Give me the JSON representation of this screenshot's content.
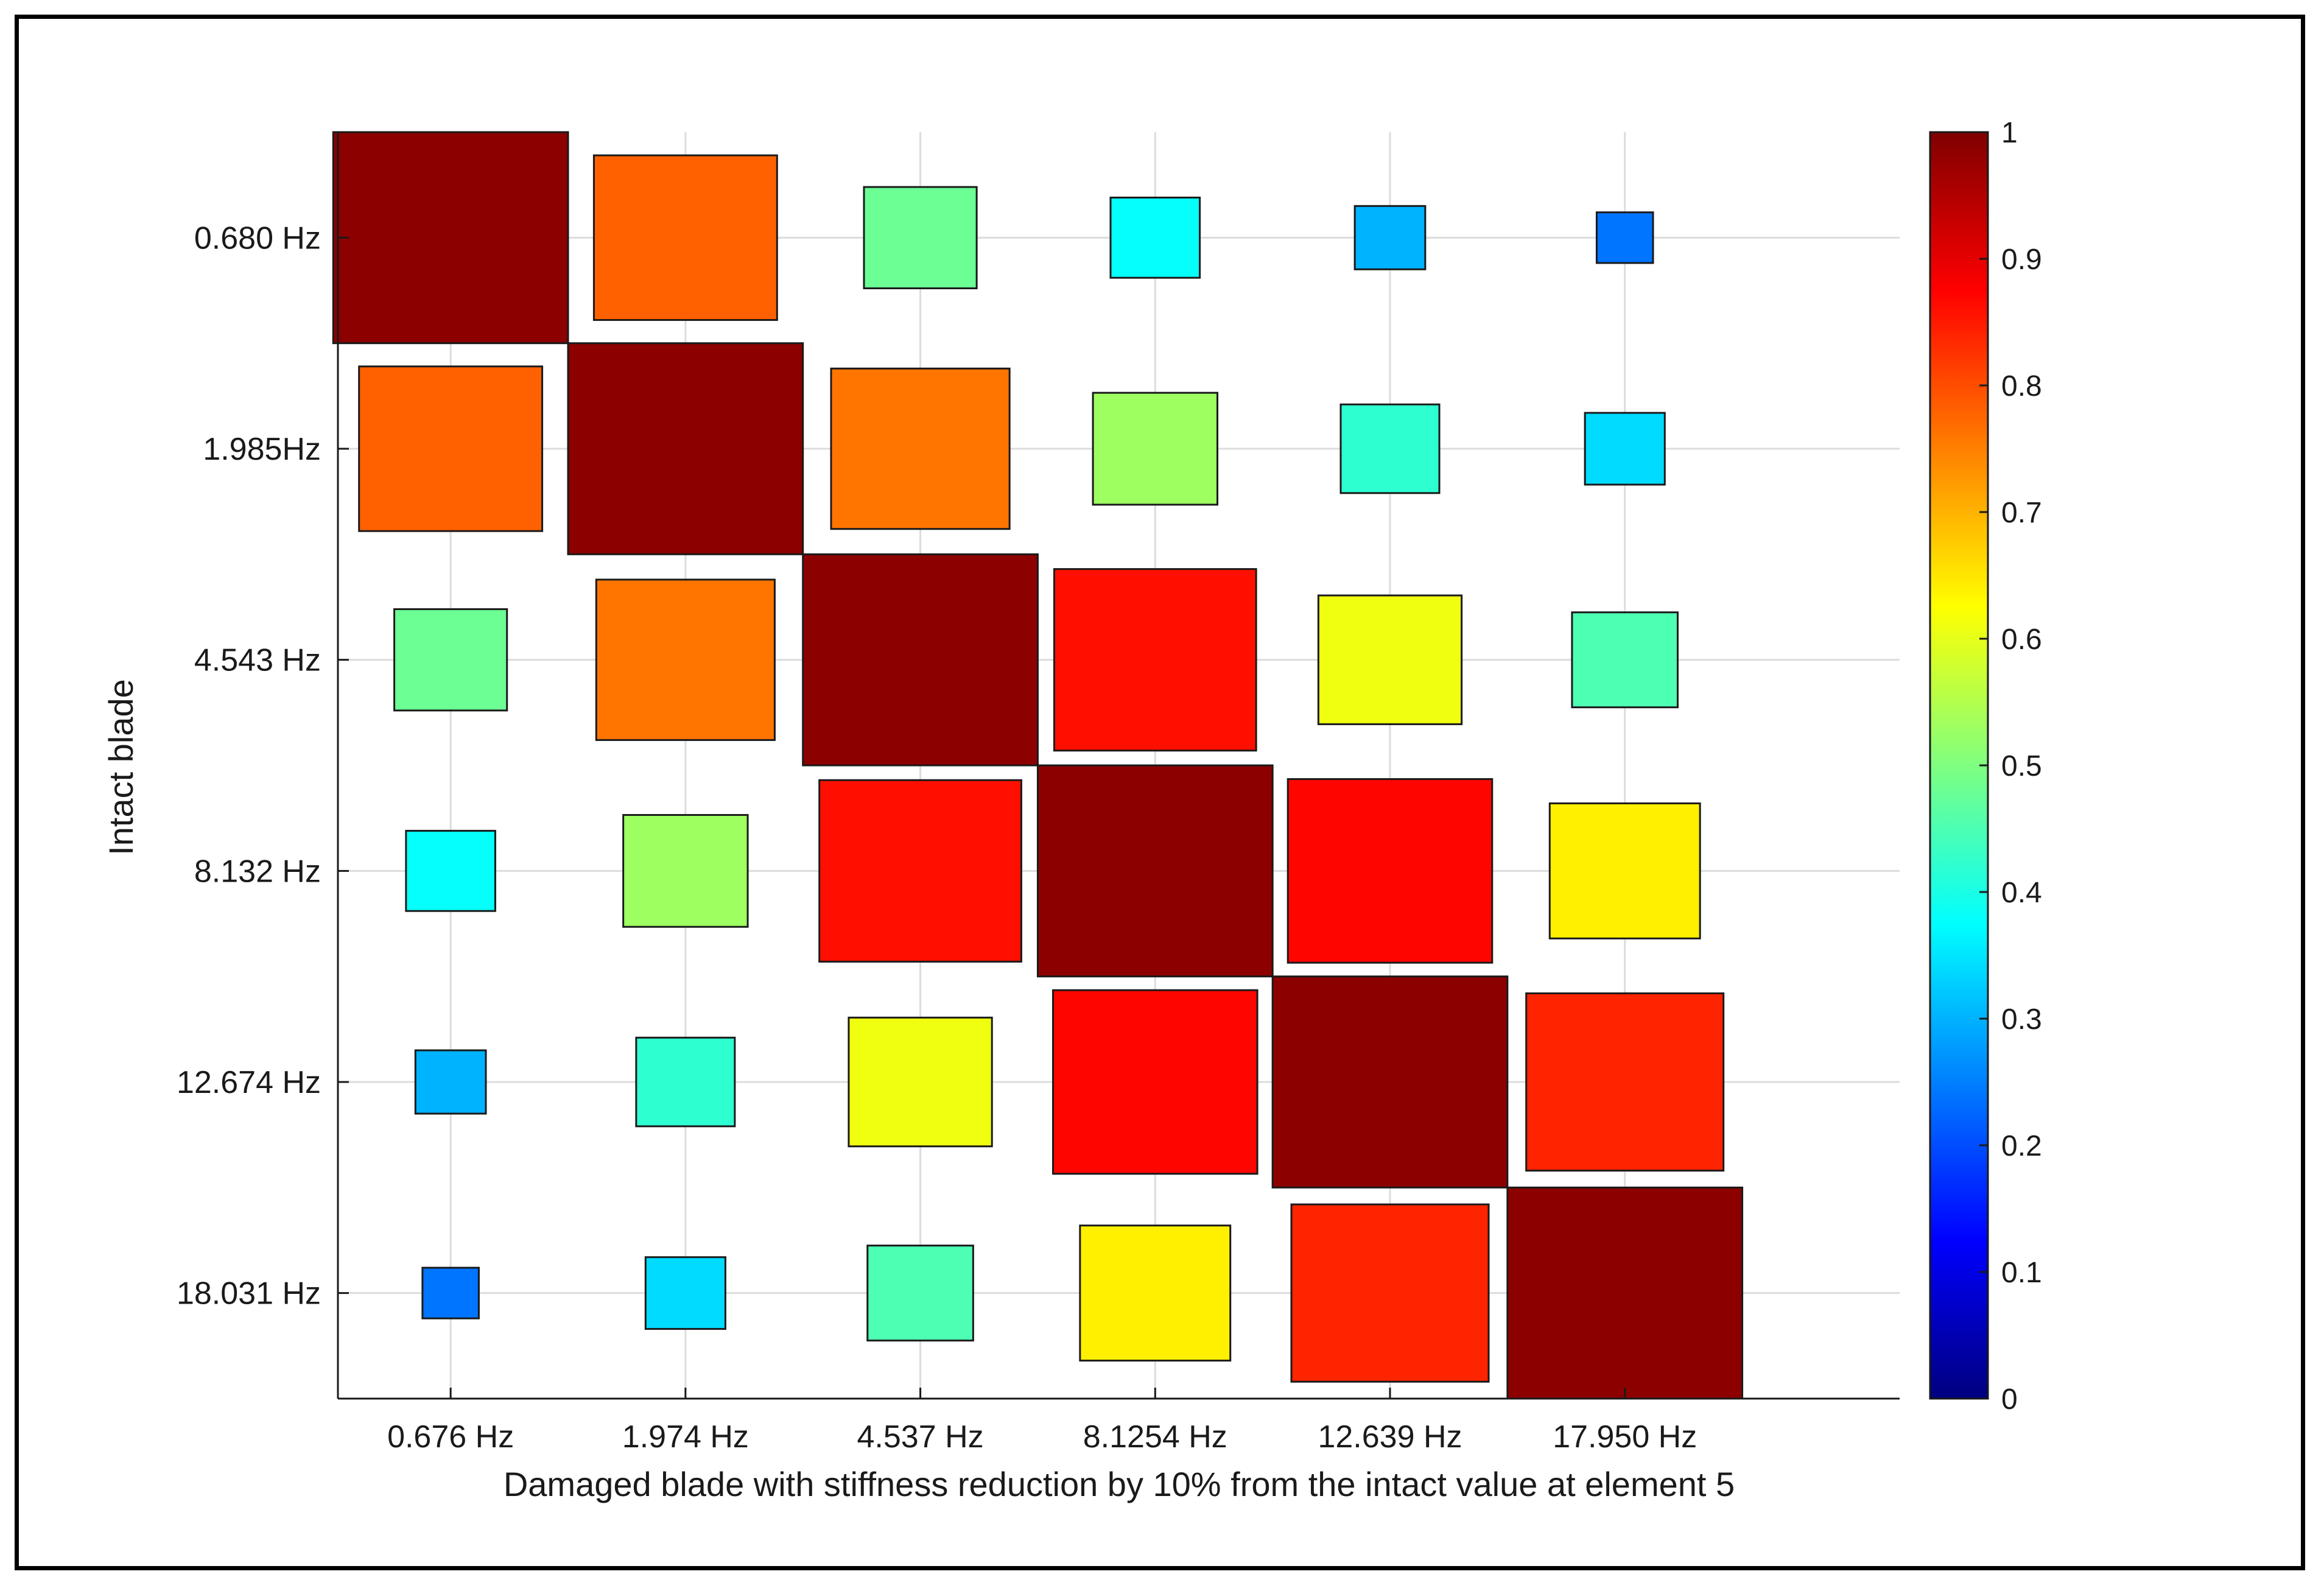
{
  "chart_data": {
    "type": "heatmap",
    "title": "",
    "xlabel": "Damaged blade with stiffness reduction by 10% from the intact value at element 5",
    "ylabel": "Intact blade",
    "x_categories": [
      "0.676 Hz",
      "1.974 Hz",
      "4.537 Hz",
      "8.1254 Hz",
      "12.639 Hz",
      "17.950 Hz"
    ],
    "y_categories": [
      "0.680 Hz",
      "1.985Hz",
      "4.543 Hz",
      "8.132 Hz",
      "12.674 Hz",
      "18.031 Hz"
    ],
    "values": [
      [
        1.0,
        0.78,
        0.48,
        0.38,
        0.3,
        0.24
      ],
      [
        0.78,
        1.0,
        0.76,
        0.53,
        0.42,
        0.34
      ],
      [
        0.48,
        0.76,
        1.0,
        0.86,
        0.61,
        0.45
      ],
      [
        0.38,
        0.53,
        0.86,
        1.0,
        0.87,
        0.64
      ],
      [
        0.3,
        0.42,
        0.61,
        0.87,
        1.0,
        0.84
      ],
      [
        0.24,
        0.34,
        0.45,
        0.64,
        0.84,
        1.0
      ]
    ],
    "encoding": "square size and color proportional to value",
    "colormap": "jet",
    "color_range": [
      0,
      1
    ],
    "colorbar_ticks": [
      "0",
      "0.1",
      "0.2",
      "0.3",
      "0.4",
      "0.5",
      "0.6",
      "0.7",
      "0.8",
      "0.9",
      "1"
    ],
    "grid": true,
    "colorbar_position": "right"
  }
}
